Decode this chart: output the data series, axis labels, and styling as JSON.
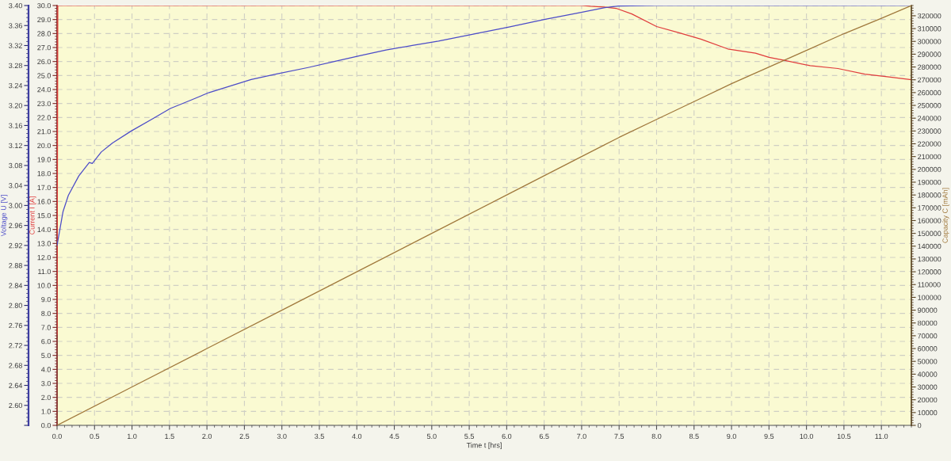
{
  "chart_data": {
    "type": "line",
    "xlabel": "Time t [hrs]",
    "ylabel": "Current I [A]",
    "y2label": "Voltage U [V]",
    "y3label": "Capacity C [mAh]",
    "grid": true,
    "xlim": [
      0,
      11.4
    ],
    "xticks": [
      {
        "value": 0,
        "label": "0.0"
      },
      0.5,
      {
        "value": 1,
        "label": "1.0"
      },
      1.5,
      {
        "value": 2,
        "label": "2.0"
      },
      2.5,
      {
        "value": 3,
        "label": "3.0"
      },
      3.5,
      {
        "value": 4,
        "label": "4.0"
      },
      4.5,
      {
        "value": 5,
        "label": "5.0"
      },
      5.5,
      {
        "value": 6,
        "label": "6.0"
      },
      6.5,
      {
        "value": 7,
        "label": "7.0"
      },
      7.5,
      {
        "value": 8,
        "label": "8.0"
      },
      8.5,
      {
        "value": 9,
        "label": "9.0"
      },
      9.5,
      {
        "value": 10,
        "label": "10.0"
      },
      10.5,
      {
        "value": 11,
        "label": "11.0"
      }
    ],
    "ylim": [
      0,
      30
    ],
    "yticks": [
      {
        "value": 0,
        "label": "0.0"
      },
      {
        "value": 1,
        "label": "1.0"
      },
      {
        "value": 2,
        "label": "2.0"
      },
      {
        "value": 3,
        "label": "3.0"
      },
      {
        "value": 4,
        "label": "4.0"
      },
      {
        "value": 5,
        "label": "5.0"
      },
      {
        "value": 6,
        "label": "6.0"
      },
      {
        "value": 7,
        "label": "7.0"
      },
      {
        "value": 8,
        "label": "8.0"
      },
      {
        "value": 9,
        "label": "9.0"
      },
      {
        "value": 10,
        "label": "10.0"
      },
      {
        "value": 11,
        "label": "11.0"
      },
      {
        "value": 12,
        "label": "12.0"
      },
      {
        "value": 13,
        "label": "13.0"
      },
      {
        "value": 14,
        "label": "14.0"
      },
      {
        "value": 15,
        "label": "15.0"
      },
      {
        "value": 16,
        "label": "16.0"
      },
      {
        "value": 17,
        "label": "17.0"
      },
      {
        "value": 18,
        "label": "18.0"
      },
      {
        "value": 19,
        "label": "19.0"
      },
      {
        "value": 20,
        "label": "20.0"
      },
      {
        "value": 21,
        "label": "21.0"
      },
      {
        "value": 22,
        "label": "22.0"
      },
      {
        "value": 23,
        "label": "23.0"
      },
      {
        "value": 24,
        "label": "24.0"
      },
      {
        "value": 25,
        "label": "25.0"
      },
      {
        "value": 26,
        "label": "26.0"
      },
      {
        "value": 27,
        "label": "27.0"
      },
      {
        "value": 28,
        "label": "28.0"
      },
      {
        "value": 29,
        "label": "29.0"
      },
      {
        "value": 30,
        "label": "30.0"
      }
    ],
    "y2lim": [
      2.56,
      3.4
    ],
    "y2ticks": [
      {
        "value": 2.56,
        "label": null
      },
      {
        "value": 2.6,
        "label": "2.60"
      },
      2.64,
      2.68,
      2.72,
      2.76,
      {
        "value": 2.8,
        "label": "2.80"
      },
      2.84,
      2.88,
      2.92,
      2.96,
      {
        "value": 3.0,
        "label": "3.00"
      },
      3.04,
      3.08,
      3.12,
      3.16,
      {
        "value": 3.2,
        "label": "3.20"
      },
      3.24,
      3.28,
      3.32,
      3.36,
      {
        "value": 3.4,
        "label": "3.40"
      }
    ],
    "y3lim": [
      0,
      328000
    ],
    "y3ticks": [
      0,
      10000,
      20000,
      30000,
      40000,
      50000,
      60000,
      70000,
      80000,
      90000,
      100000,
      110000,
      120000,
      130000,
      140000,
      150000,
      160000,
      170000,
      180000,
      190000,
      200000,
      210000,
      220000,
      230000,
      240000,
      250000,
      260000,
      270000,
      280000,
      290000,
      300000,
      310000,
      320000
    ],
    "series": [
      {
        "axis": "y3",
        "color": "#a0783c",
        "x": [
          0,
          1,
          2,
          3,
          4,
          5,
          6,
          7,
          7.5,
          8,
          8.5,
          9,
          9.5,
          10,
          10.5,
          11,
          11.4
        ],
        "values": [
          0,
          30000,
          60000,
          90000,
          120000,
          150000,
          180000,
          210000,
          225000,
          239000,
          253000,
          267000,
          280000,
          293000,
          306000,
          318000,
          328000
        ]
      },
      {
        "axis": "y",
        "color": "#e03c3c",
        "x": [
          0,
          0.01,
          1,
          2,
          3,
          4,
          5,
          6,
          6.5,
          7.0,
          7.12,
          7.3,
          7.46,
          7.67,
          8.0,
          8.3,
          8.59,
          8.95,
          9.32,
          9.5,
          9.69,
          10.05,
          10.42,
          10.78,
          11.1,
          11.4
        ],
        "values": [
          6.5,
          30.0,
          30.0,
          30.0,
          30.0,
          30.0,
          30.0,
          30.0,
          30.0,
          30.0,
          29.95,
          29.9,
          29.8,
          29.4,
          28.5,
          28.05,
          27.6,
          26.9,
          26.6,
          26.3,
          26.1,
          25.7,
          25.5,
          25.1,
          24.9,
          24.7
        ]
      },
      {
        "axis": "y2",
        "color": "#4b4bc8",
        "x": [
          0,
          0.08,
          0.15,
          0.29,
          0.43,
          0.47,
          0.59,
          0.74,
          0.99,
          1.27,
          1.51,
          1.79,
          2.03,
          2.31,
          2.59,
          2.93,
          3.35,
          3.7,
          4.05,
          4.39,
          4.74,
          5.09,
          5.5,
          6.03,
          6.5,
          6.98,
          7.31,
          7.49,
          8.0,
          9.0,
          10.0,
          11.4
        ],
        "values": [
          2.92,
          2.988,
          3.02,
          3.059,
          3.086,
          3.084,
          3.107,
          3.125,
          3.149,
          3.173,
          3.194,
          3.211,
          3.226,
          3.239,
          3.252,
          3.263,
          3.276,
          3.288,
          3.3,
          3.311,
          3.32,
          3.329,
          3.341,
          3.357,
          3.372,
          3.386,
          3.396,
          3.399,
          3.4,
          3.4,
          3.4,
          3.4
        ]
      }
    ]
  }
}
